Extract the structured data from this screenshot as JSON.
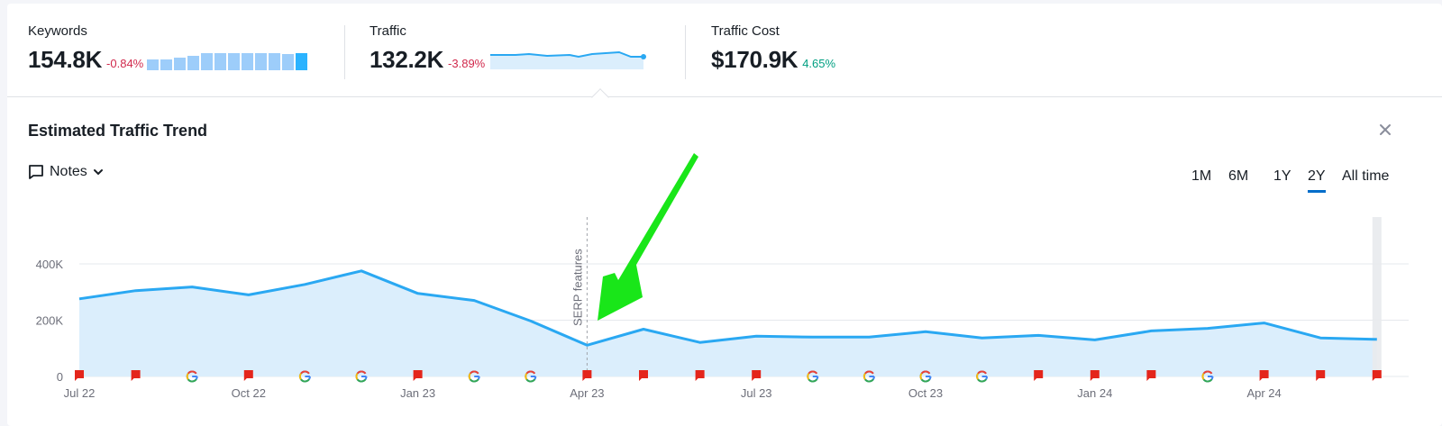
{
  "summary": {
    "keywords": {
      "label": "Keywords",
      "value": "154.8K",
      "delta": "-0.84%",
      "delta_color": "#d1294c",
      "bars": [
        12,
        12,
        14,
        16,
        19,
        19,
        19,
        19,
        19,
        19,
        18,
        19
      ]
    },
    "traffic": {
      "label": "Traffic",
      "value": "132.2K",
      "delta": "-3.89%",
      "delta_color": "#d1294c"
    },
    "traffic_cost": {
      "label": "Traffic Cost",
      "value": "$170.9K",
      "delta": "4.65%",
      "delta_color": "#009f81"
    }
  },
  "panel": {
    "title": "Estimated Traffic Trend",
    "close_icon": "close-icon",
    "notes_label": "Notes",
    "periods": [
      {
        "label": "1M",
        "active": false
      },
      {
        "label": "6M",
        "active": false
      },
      {
        "label": "1Y",
        "active": false
      },
      {
        "label": "2Y",
        "active": true
      },
      {
        "label": "All time",
        "active": false
      }
    ]
  },
  "colors": {
    "line": "#2aa8f2",
    "fill": "#dbeefc",
    "accent": "#006dca",
    "note_flag": "#e4251b",
    "arrow": "#19e619"
  },
  "chart_data": {
    "type": "area",
    "title": "Estimated Traffic Trend",
    "xlabel": "",
    "ylabel": "",
    "ylim": [
      0,
      450000
    ],
    "y_ticks": [
      "0",
      "200K",
      "400K"
    ],
    "x_tick_labels": [
      "Jul 22",
      "Oct 22",
      "Jan 23",
      "Apr 23",
      "Jul 23",
      "Oct 23",
      "Jan 24",
      "Apr 24"
    ],
    "x": [
      "Jul 22",
      "Aug 22",
      "Sep 22",
      "Oct 22",
      "Nov 22",
      "Dec 22",
      "Jan 23",
      "Feb 23",
      "Mar 23",
      "Apr 23",
      "May 23",
      "Jun 23",
      "Jul 23",
      "Aug 23",
      "Sep 23",
      "Oct 23",
      "Nov 23",
      "Dec 23",
      "Jan 24",
      "Feb 24",
      "Mar 24",
      "Apr 24",
      "May 24",
      "Jun 24"
    ],
    "series": [
      {
        "name": "Traffic",
        "values": [
          276000,
          305000,
          318000,
          290000,
          327000,
          375000,
          295000,
          270000,
          197000,
          111000,
          168000,
          121000,
          143000,
          140000,
          140000,
          159000,
          137000,
          146000,
          130000,
          162000,
          171000,
          190000,
          137000,
          132000
        ]
      }
    ],
    "markers": [
      "note",
      "note",
      "google",
      "note",
      "google",
      "google",
      "note",
      "google",
      "google",
      "note",
      "note",
      "note",
      "note",
      "google",
      "google",
      "google",
      "google",
      "note",
      "note",
      "note",
      "google",
      "note",
      "note",
      "note"
    ],
    "annotation": {
      "label": "SERP features",
      "at": "Apr 23"
    },
    "grid": true
  }
}
